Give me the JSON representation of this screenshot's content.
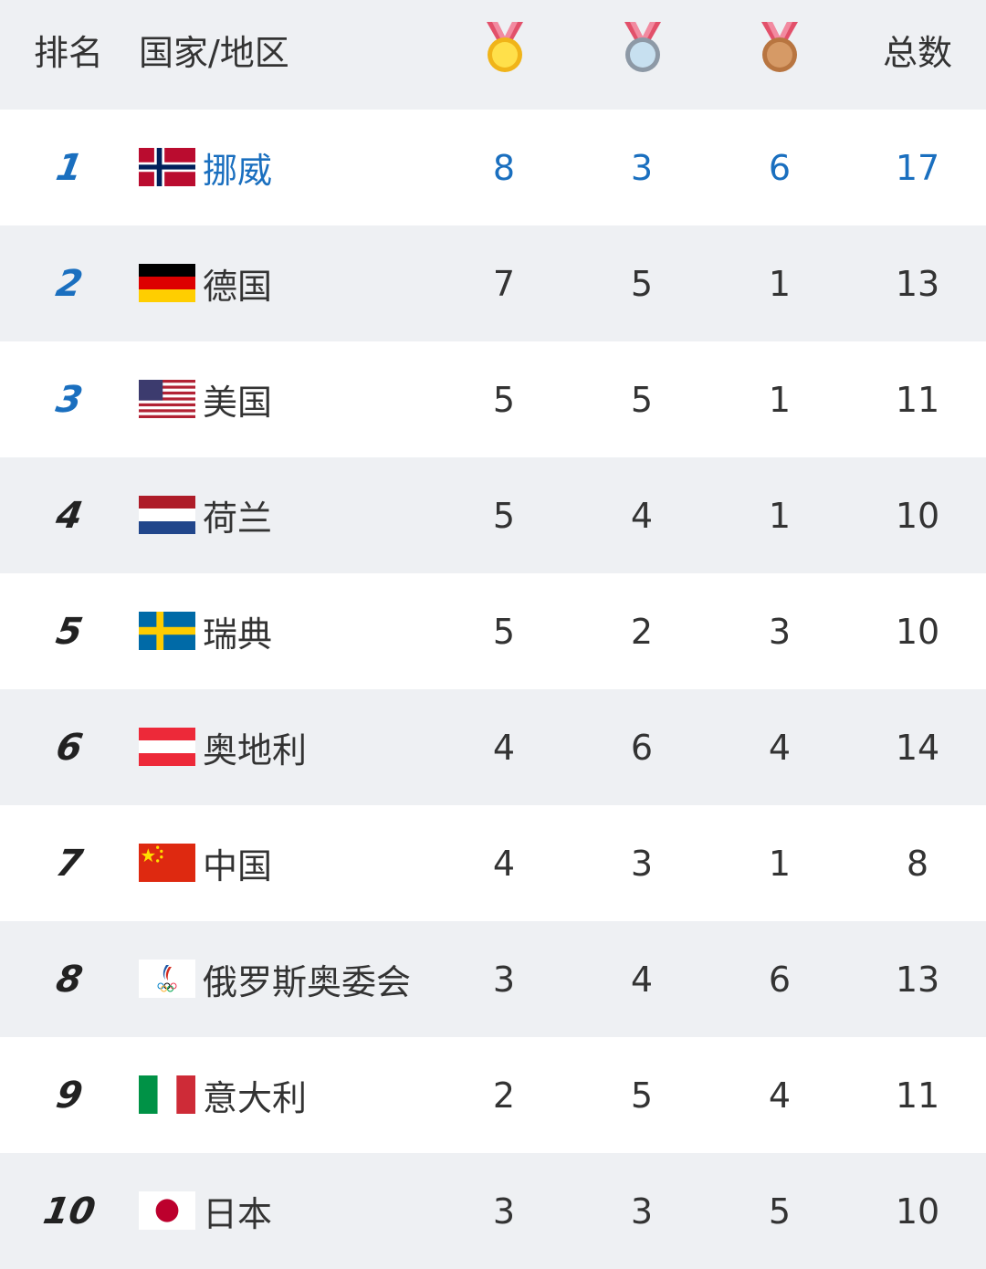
{
  "header": {
    "rank_label": "排名",
    "country_label": "国家/地区",
    "gold_icon": "gold-medal-icon",
    "silver_icon": "silver-medal-icon",
    "bronze_icon": "bronze-medal-icon",
    "total_label": "总数"
  },
  "colors": {
    "highlight": "#1a6fbf",
    "row_alt": "#eef0f3",
    "gold": "#f5c518",
    "silver": "#b9cfe0",
    "bronze": "#c98a55"
  },
  "rows": [
    {
      "rank": "1",
      "flag": "norway-flag",
      "country": "挪威",
      "gold": "8",
      "silver": "3",
      "bronze": "6",
      "total": "17"
    },
    {
      "rank": "2",
      "flag": "germany-flag",
      "country": "德国",
      "gold": "7",
      "silver": "5",
      "bronze": "1",
      "total": "13"
    },
    {
      "rank": "3",
      "flag": "usa-flag",
      "country": "美国",
      "gold": "5",
      "silver": "5",
      "bronze": "1",
      "total": "11"
    },
    {
      "rank": "4",
      "flag": "netherlands-flag",
      "country": "荷兰",
      "gold": "5",
      "silver": "4",
      "bronze": "1",
      "total": "10"
    },
    {
      "rank": "5",
      "flag": "sweden-flag",
      "country": "瑞典",
      "gold": "5",
      "silver": "2",
      "bronze": "3",
      "total": "10"
    },
    {
      "rank": "6",
      "flag": "austria-flag",
      "country": "奥地利",
      "gold": "4",
      "silver": "6",
      "bronze": "4",
      "total": "14"
    },
    {
      "rank": "7",
      "flag": "china-flag",
      "country": "中国",
      "gold": "4",
      "silver": "3",
      "bronze": "1",
      "total": "8"
    },
    {
      "rank": "8",
      "flag": "roc-emblem",
      "country": "俄罗斯奥委会",
      "gold": "3",
      "silver": "4",
      "bronze": "6",
      "total": "13"
    },
    {
      "rank": "9",
      "flag": "italy-flag",
      "country": "意大利",
      "gold": "2",
      "silver": "5",
      "bronze": "4",
      "total": "11"
    },
    {
      "rank": "10",
      "flag": "japan-flag",
      "country": "日本",
      "gold": "3",
      "silver": "3",
      "bronze": "5",
      "total": "10"
    }
  ]
}
